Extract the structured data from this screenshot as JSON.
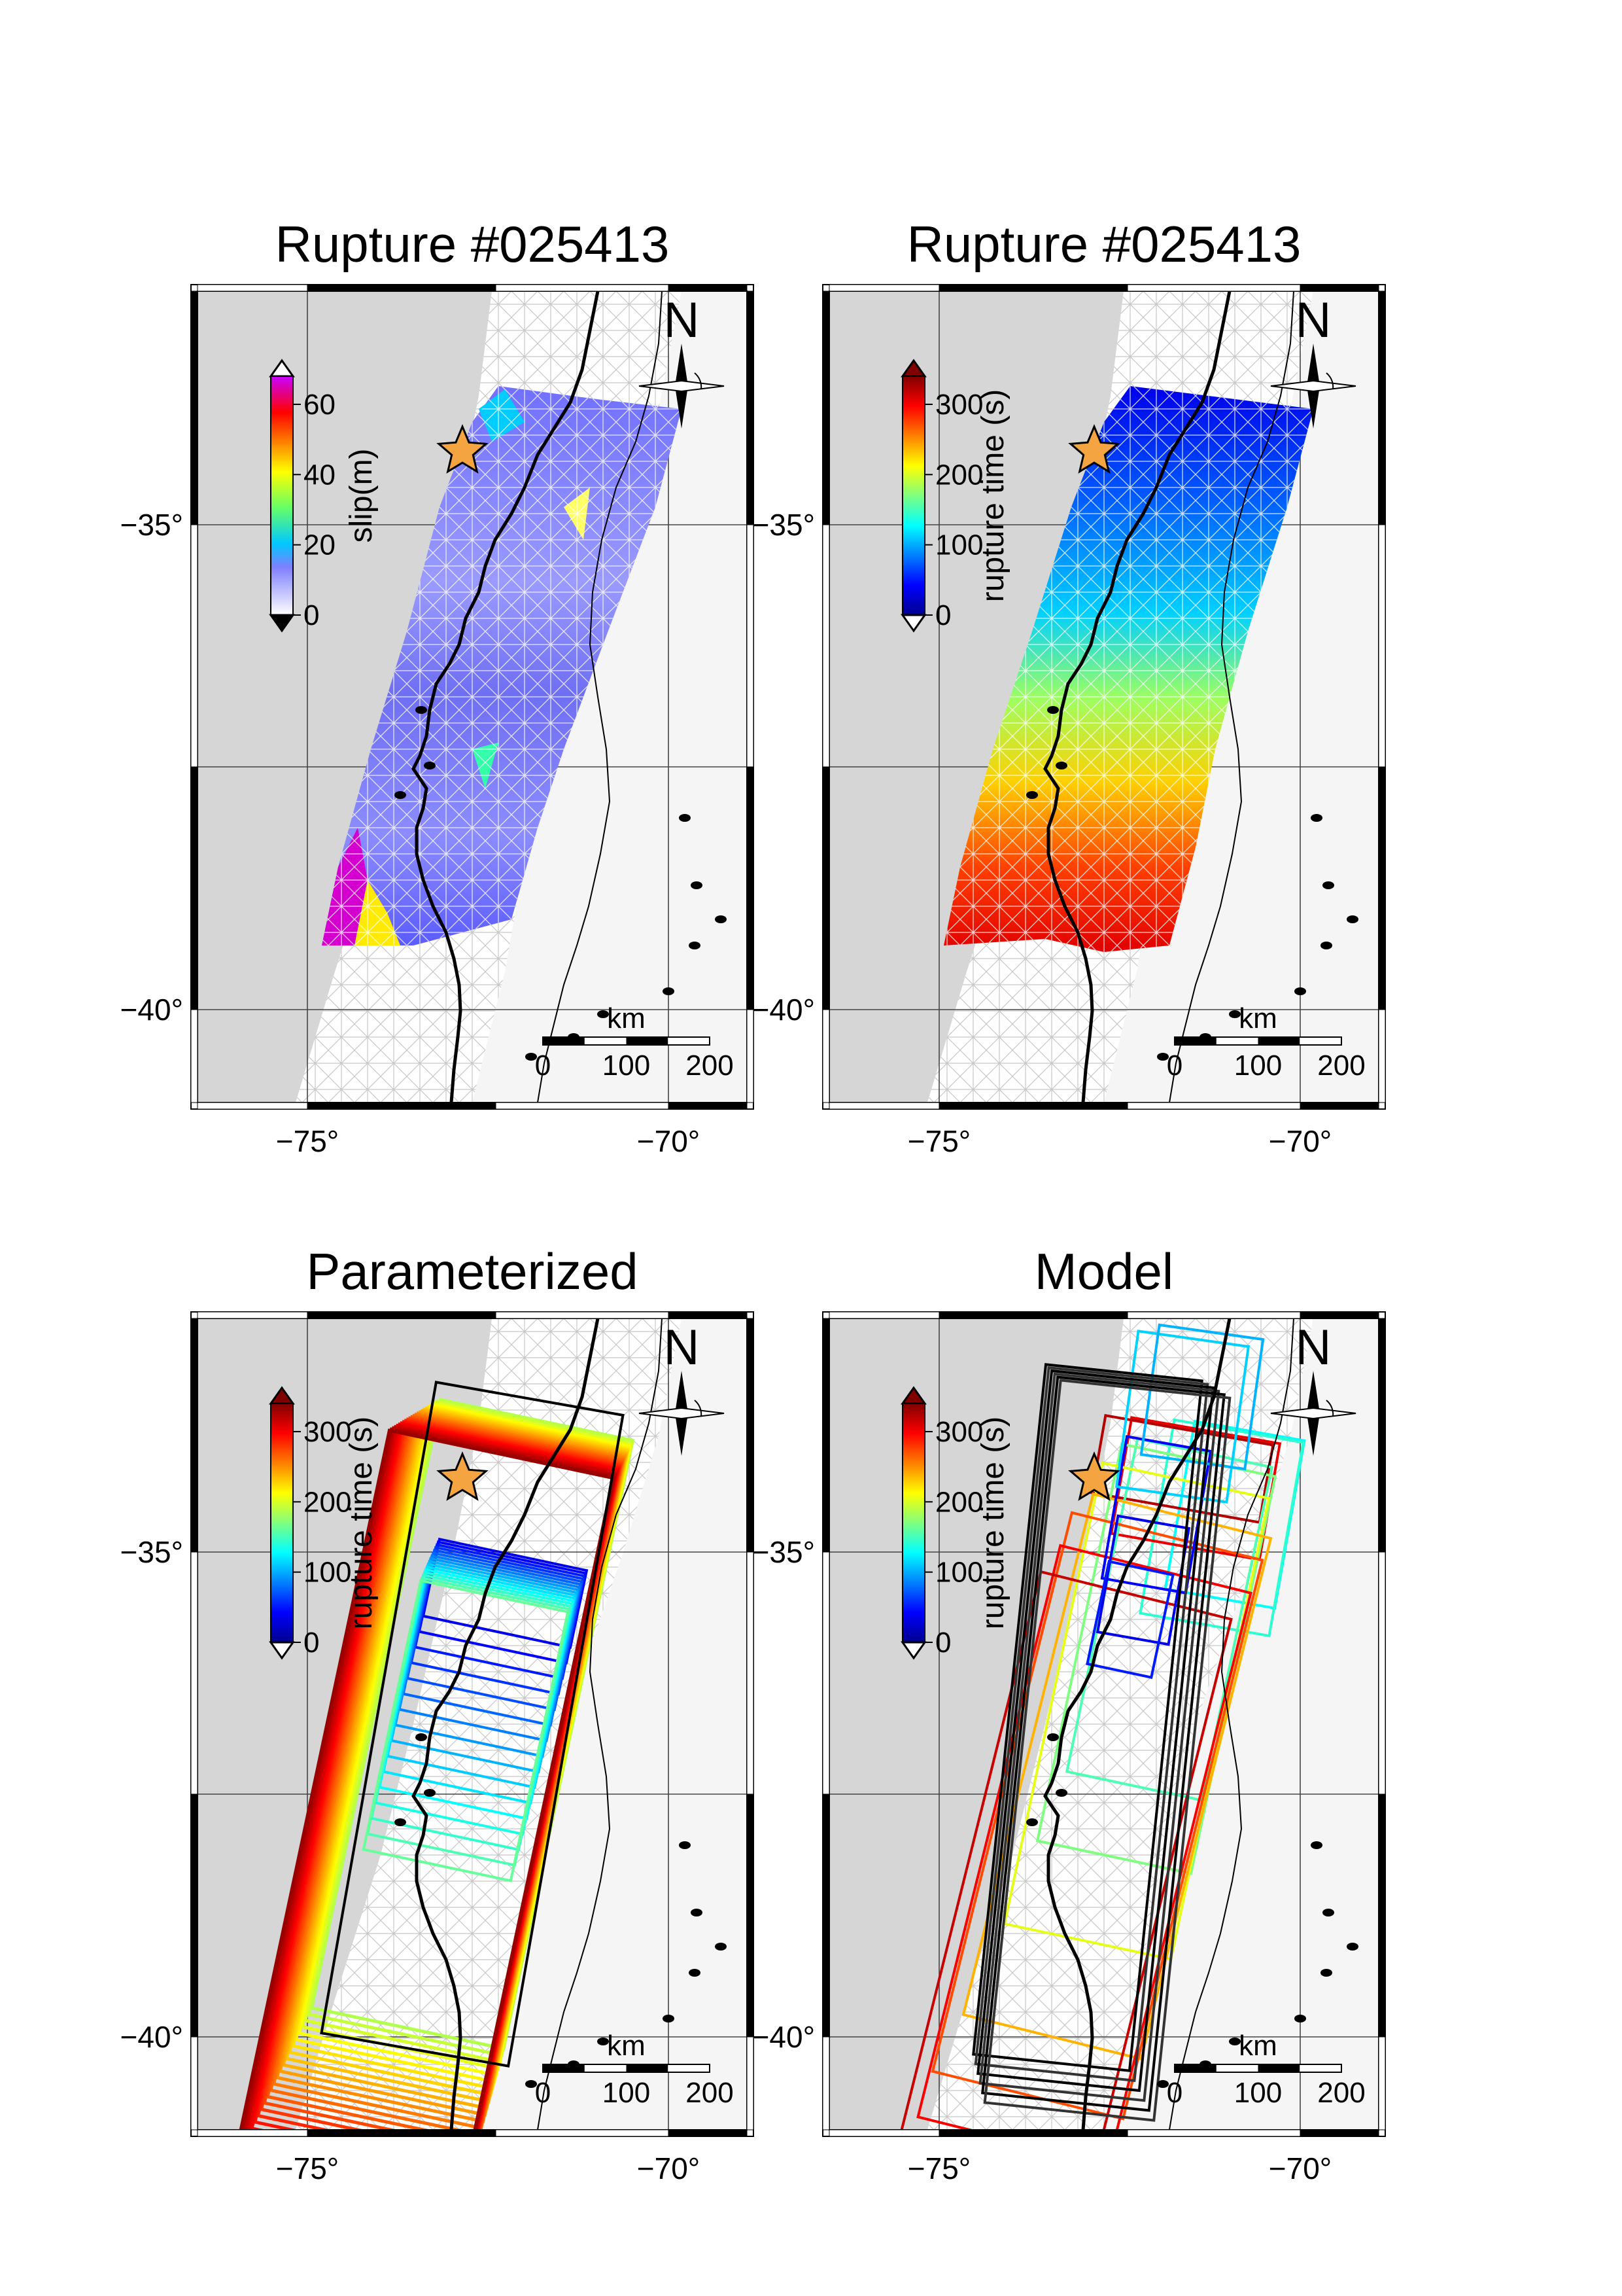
{
  "colors": {
    "land": "#f5f5f5",
    "sea": "#d6d6d6",
    "star": "#f5a442",
    "coast": "#000000",
    "grid": "#444444",
    "mesh": "#ffffff"
  },
  "axes": {
    "lat_labels": [
      "−35°",
      "−40°"
    ],
    "lon_labels": [
      "−75°",
      "−70°"
    ]
  },
  "scalebar": {
    "unit": "km",
    "ticks": [
      "0",
      "100",
      "200"
    ]
  },
  "north_label": "N",
  "panels": [
    {
      "id": "slip",
      "title": "Rupture #025413",
      "colorbar": {
        "title": "slip(m)",
        "ticks": [
          "0",
          "20",
          "40",
          "60"
        ],
        "palette": "slip"
      }
    },
    {
      "id": "rupture-time",
      "title": "Rupture #025413",
      "colorbar": {
        "title": "rupture time (s)",
        "ticks": [
          "0",
          "100",
          "200",
          "300"
        ],
        "palette": "jet"
      }
    },
    {
      "id": "parameterized",
      "title": "Parameterized",
      "colorbar": {
        "title": "rupture time (s)",
        "ticks": [
          "0",
          "100",
          "200",
          "300"
        ],
        "palette": "jet"
      }
    },
    {
      "id": "model",
      "title": "Model",
      "colorbar": {
        "title": "rupture time (s)",
        "ticks": [
          "0",
          "100",
          "200",
          "300"
        ],
        "palette": "jet"
      }
    }
  ]
}
